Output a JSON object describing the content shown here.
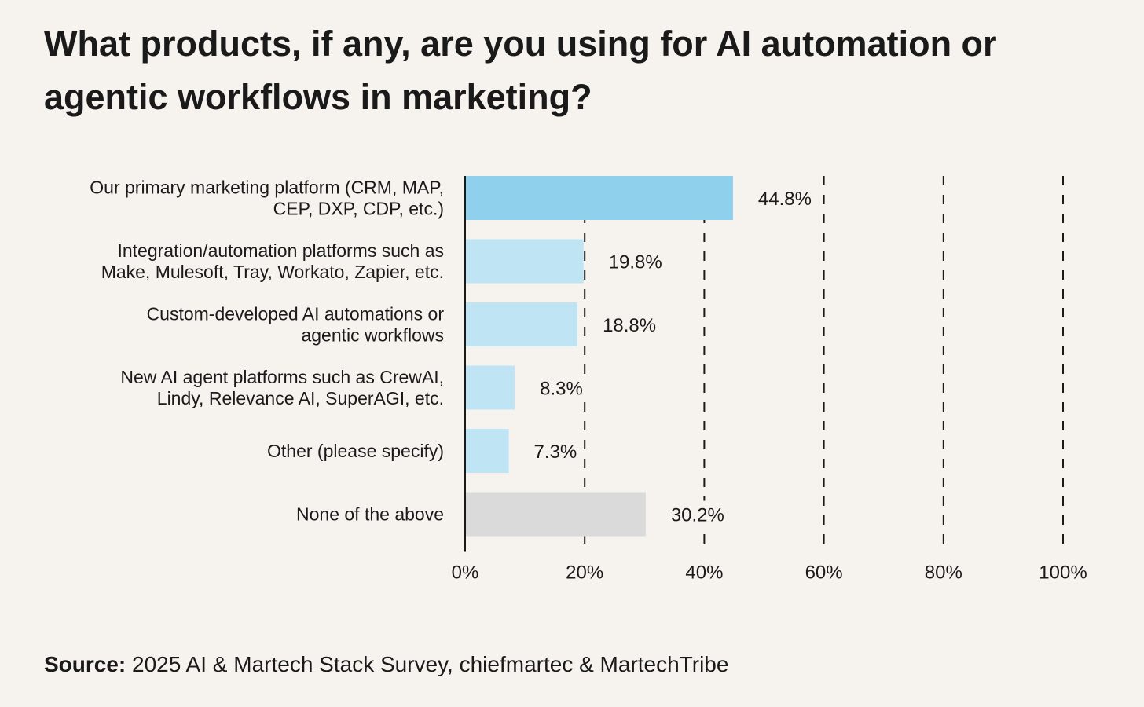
{
  "chart_data": {
    "type": "bar",
    "orientation": "horizontal",
    "title": "What products, if any, are you using for AI automation or agentic workflows in marketing?",
    "categories": [
      [
        "Our primary marketing platform (CRM, MAP,",
        "CEP, DXP, CDP, etc.)"
      ],
      [
        "Integration/automation platforms such as",
        "Make, Mulesoft, Tray, Workato, Zapier, etc."
      ],
      [
        "Custom-developed AI automations or",
        "agentic workflows"
      ],
      [
        "New AI agent platforms such as CrewAI,",
        "Lindy, Relevance AI, SuperAGI, etc."
      ],
      [
        "Other (please specify)"
      ],
      [
        "None of the above"
      ]
    ],
    "values": [
      44.8,
      19.8,
      18.8,
      8.3,
      7.3,
      30.2
    ],
    "value_labels": [
      "44.8%",
      "19.8%",
      "18.8%",
      "8.3%",
      "7.3%",
      "30.2%"
    ],
    "bar_colors": [
      "#8fd0ec",
      "#bfe4f4",
      "#bfe4f4",
      "#bfe4f4",
      "#bfe4f4",
      "#dadada"
    ],
    "xlim": [
      0,
      100
    ],
    "xticks": [
      0,
      20,
      40,
      60,
      80,
      100
    ],
    "xtick_labels": [
      "0%",
      "20%",
      "40%",
      "60%",
      "80%",
      "100%"
    ],
    "xlabel": "",
    "ylabel": "",
    "grid": "vertical dashed",
    "legend": "none"
  },
  "source": {
    "label": "Source:",
    "text": "2025 AI & Martech Stack Survey, chiefmartec & MartechTribe"
  },
  "colors": {
    "background": "#f6f3ee",
    "text": "#1a1a1a",
    "gridline": "#1a1a1a"
  }
}
